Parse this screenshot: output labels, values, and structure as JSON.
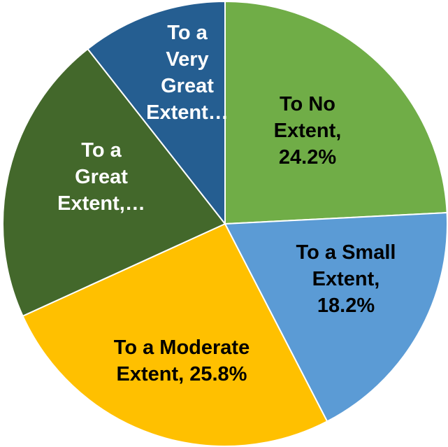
{
  "chart_data": {
    "type": "pie",
    "title": "",
    "slices": [
      {
        "label": "To No Extent",
        "value": 24.2,
        "color": "#70ad47",
        "text_color": "#000000",
        "label_lines": [
          "To No",
          "Extent,",
          "24.2%"
        ]
      },
      {
        "label": "To a Small Extent",
        "value": 18.2,
        "color": "#5b9bd5",
        "text_color": "#000000",
        "label_lines": [
          "To a Small",
          "Extent,",
          "18.2%"
        ]
      },
      {
        "label": "To a Moderate Extent",
        "value": 25.8,
        "color": "#ffc000",
        "text_color": "#000000",
        "label_lines": [
          "To a Moderate",
          "Extent, 25.8%"
        ]
      },
      {
        "label": "To a Great Extent",
        "value": 21.2,
        "color": "#43682b",
        "text_color": "#ffffff",
        "label_lines": [
          "To a",
          "Great",
          "Extent,…"
        ]
      },
      {
        "label": "To a Very Great Extent",
        "value": 10.6,
        "color": "#255e91",
        "text_color": "#ffffff",
        "label_lines": [
          "To a",
          "Very",
          "Great",
          "Extent…"
        ]
      }
    ]
  }
}
